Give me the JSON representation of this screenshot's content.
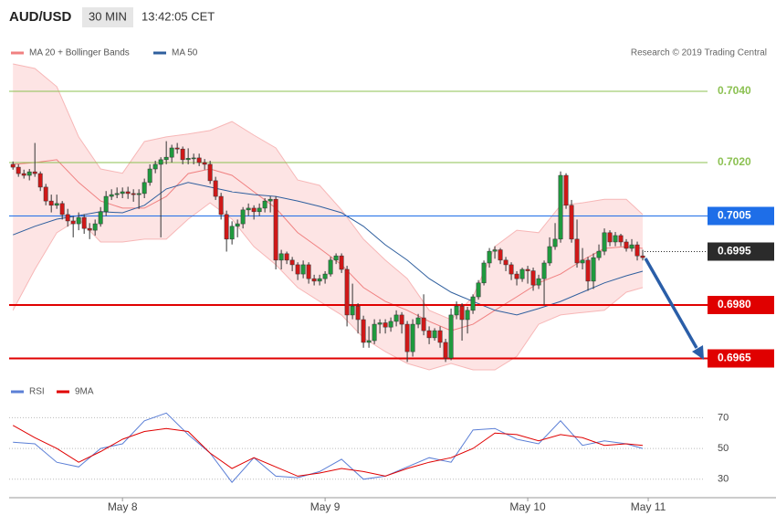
{
  "chart_data": [
    {
      "type": "candlestick",
      "title": "AUD/USD",
      "interval": "30 MIN",
      "time": "13:42:05 CET",
      "credit": "Research © 2019 Trading Central",
      "up_color": "#1f9a3e",
      "down_color": "#d01818",
      "xlim": [
        -0.7,
        126
      ],
      "xticks": [
        {
          "value": 20,
          "label": "May 8"
        },
        {
          "value": 57,
          "label": "May 9"
        },
        {
          "value": 94,
          "label": "May 10"
        },
        {
          "value": 116,
          "label": "May 11"
        }
      ],
      "ylim": [
        0.696,
        0.7054
      ],
      "legend": [
        {
          "name": "MA 20 + Bollinger Bands",
          "color": "#f08080"
        },
        {
          "name": "MA 50",
          "color": "#2f5f9e"
        }
      ],
      "candles": [
        [
          0.70195,
          0.70203,
          0.7018,
          0.70187
        ],
        [
          0.70187,
          0.70195,
          0.7016,
          0.70169
        ],
        [
          0.70169,
          0.7018,
          0.70155,
          0.70164
        ],
        [
          0.70164,
          0.70182,
          0.7015,
          0.70174
        ],
        [
          0.70174,
          0.70255,
          0.7016,
          0.70169
        ],
        [
          0.70169,
          0.70175,
          0.7012,
          0.70131
        ],
        [
          0.70131,
          0.7014,
          0.7008,
          0.70092
        ],
        [
          0.70092,
          0.7011,
          0.7006,
          0.7008
        ],
        [
          0.7008,
          0.7011,
          0.7007,
          0.70085
        ],
        [
          0.70085,
          0.70092,
          0.7004,
          0.70054
        ],
        [
          0.70054,
          0.7007,
          0.7002,
          0.70036
        ],
        [
          0.70036,
          0.7005,
          0.6999,
          0.70028
        ],
        [
          0.70028,
          0.7006,
          0.7001,
          0.70046
        ],
        [
          0.70046,
          0.70055,
          0.7,
          0.70015
        ],
        [
          0.70015,
          0.7003,
          0.69985,
          0.7001
        ],
        [
          0.7001,
          0.7004,
          0.69995,
          0.70028
        ],
        [
          0.70028,
          0.70075,
          0.7002,
          0.70062
        ],
        [
          0.70062,
          0.7012,
          0.7005,
          0.70105
        ],
        [
          0.70105,
          0.70125,
          0.70095,
          0.7011
        ],
        [
          0.7011,
          0.7013,
          0.701,
          0.70113
        ],
        [
          0.70113,
          0.7013,
          0.701,
          0.70118
        ],
        [
          0.70118,
          0.70132,
          0.70098,
          0.70113
        ],
        [
          0.70113,
          0.70125,
          0.7009,
          0.7011
        ],
        [
          0.7011,
          0.70125,
          0.7007,
          0.70113
        ],
        [
          0.70113,
          0.70155,
          0.701,
          0.70144
        ],
        [
          0.70144,
          0.70195,
          0.70135,
          0.70182
        ],
        [
          0.70182,
          0.70205,
          0.7017,
          0.70195
        ],
        [
          0.70195,
          0.70215,
          0.6999,
          0.70208
        ],
        [
          0.70208,
          0.7026,
          0.70195,
          0.70215
        ],
        [
          0.70215,
          0.7025,
          0.702,
          0.70241
        ],
        [
          0.70241,
          0.70255,
          0.70225,
          0.70238
        ],
        [
          0.70238,
          0.70245,
          0.70195,
          0.70208
        ],
        [
          0.70208,
          0.7024,
          0.70195,
          0.70212
        ],
        [
          0.70212,
          0.70225,
          0.70195,
          0.70213
        ],
        [
          0.70213,
          0.70225,
          0.7019,
          0.702
        ],
        [
          0.702,
          0.7021,
          0.7018,
          0.70195
        ],
        [
          0.70195,
          0.70205,
          0.7014,
          0.70149
        ],
        [
          0.70149,
          0.7016,
          0.70095,
          0.70105
        ],
        [
          0.70105,
          0.70115,
          0.7004,
          0.70054
        ],
        [
          0.70054,
          0.70065,
          0.6995,
          0.69985
        ],
        [
          0.69985,
          0.70035,
          0.6997,
          0.70021
        ],
        [
          0.70021,
          0.7004,
          0.6999,
          0.70028
        ],
        [
          0.70028,
          0.70075,
          0.70015,
          0.70067
        ],
        [
          0.70067,
          0.70085,
          0.7005,
          0.70072
        ],
        [
          0.70072,
          0.7008,
          0.7004,
          0.70062
        ],
        [
          0.70062,
          0.70085,
          0.7005,
          0.70072
        ],
        [
          0.70072,
          0.701,
          0.7006,
          0.70092
        ],
        [
          0.70092,
          0.70105,
          0.7006,
          0.70097
        ],
        [
          0.70097,
          0.70105,
          0.699,
          0.69926
        ],
        [
          0.69926,
          0.69955,
          0.699,
          0.69944
        ],
        [
          0.69944,
          0.6995,
          0.69915,
          0.69926
        ],
        [
          0.69926,
          0.69935,
          0.69895,
          0.69913
        ],
        [
          0.69913,
          0.6992,
          0.6987,
          0.69887
        ],
        [
          0.69887,
          0.69925,
          0.69875,
          0.69913
        ],
        [
          0.69913,
          0.6992,
          0.6986,
          0.69874
        ],
        [
          0.69874,
          0.69885,
          0.69855,
          0.69867
        ],
        [
          0.69867,
          0.69885,
          0.69855,
          0.69874
        ],
        [
          0.69874,
          0.69895,
          0.6986,
          0.69887
        ],
        [
          0.69887,
          0.69935,
          0.6988,
          0.69926
        ],
        [
          0.69926,
          0.69945,
          0.69915,
          0.69938
        ],
        [
          0.69938,
          0.69945,
          0.6989,
          0.699
        ],
        [
          0.699,
          0.6991,
          0.6974,
          0.69772
        ],
        [
          0.69772,
          0.6986,
          0.6976,
          0.69797
        ],
        [
          0.69797,
          0.69805,
          0.6972,
          0.69759
        ],
        [
          0.69759,
          0.6977,
          0.6968,
          0.69695
        ],
        [
          0.69695,
          0.6974,
          0.6968,
          0.697
        ],
        [
          0.697,
          0.6976,
          0.6969,
          0.69746
        ],
        [
          0.69746,
          0.6976,
          0.6972,
          0.6975
        ],
        [
          0.6975,
          0.6976,
          0.6972,
          0.69738
        ],
        [
          0.69738,
          0.69765,
          0.69725,
          0.69754
        ],
        [
          0.69754,
          0.69785,
          0.6974,
          0.69772
        ],
        [
          0.69772,
          0.6978,
          0.6972,
          0.69746
        ],
        [
          0.69746,
          0.69755,
          0.6964,
          0.69669
        ],
        [
          0.69669,
          0.6976,
          0.69655,
          0.69746
        ],
        [
          0.69746,
          0.69775,
          0.69735,
          0.69764
        ],
        [
          0.69764,
          0.6983,
          0.69715,
          0.69728
        ],
        [
          0.69728,
          0.6974,
          0.6969,
          0.69708
        ],
        [
          0.69708,
          0.69735,
          0.697,
          0.69728
        ],
        [
          0.69728,
          0.6974,
          0.6968,
          0.69695
        ],
        [
          0.69695,
          0.69705,
          0.6964,
          0.69651
        ],
        [
          0.69651,
          0.6979,
          0.69645,
          0.69772
        ],
        [
          0.69772,
          0.6981,
          0.6976,
          0.69797
        ],
        [
          0.69797,
          0.69805,
          0.697,
          0.69759
        ],
        [
          0.69759,
          0.69795,
          0.6972,
          0.69785
        ],
        [
          0.69785,
          0.6983,
          0.69775,
          0.69823
        ],
        [
          0.69823,
          0.6987,
          0.69815,
          0.69862
        ],
        [
          0.69862,
          0.69925,
          0.69855,
          0.69918
        ],
        [
          0.69918,
          0.6996,
          0.69905,
          0.69951
        ],
        [
          0.69951,
          0.69965,
          0.6993,
          0.69955
        ],
        [
          0.69955,
          0.6996,
          0.69915,
          0.69926
        ],
        [
          0.69926,
          0.69935,
          0.69895,
          0.69913
        ],
        [
          0.69913,
          0.6992,
          0.6987,
          0.69887
        ],
        [
          0.69887,
          0.69895,
          0.69855,
          0.69874
        ],
        [
          0.69874,
          0.69905,
          0.69865,
          0.699
        ],
        [
          0.699,
          0.6991,
          0.6986,
          0.69896
        ],
        [
          0.69896,
          0.69905,
          0.6984,
          0.69856
        ],
        [
          0.69856,
          0.69885,
          0.69845,
          0.69874
        ],
        [
          0.69874,
          0.69925,
          0.698,
          0.69918
        ],
        [
          0.69918,
          0.6999,
          0.6991,
          0.69964
        ],
        [
          0.69964,
          0.7003,
          0.69955,
          0.69985
        ],
        [
          0.69985,
          0.70175,
          0.69975,
          0.70164
        ],
        [
          0.70164,
          0.7017,
          0.7007,
          0.7008
        ],
        [
          0.7008,
          0.70095,
          0.69975,
          0.69985
        ],
        [
          0.69985,
          0.7004,
          0.69905,
          0.69918
        ],
        [
          0.69918,
          0.6996,
          0.699,
          0.69926
        ],
        [
          0.69926,
          0.69935,
          0.6984,
          0.69867
        ],
        [
          0.69867,
          0.69945,
          0.69845,
          0.69933
        ],
        [
          0.69933,
          0.6997,
          0.69925,
          0.69951
        ],
        [
          0.69951,
          0.70015,
          0.6994,
          0.70003
        ],
        [
          0.70003,
          0.7001,
          0.69965,
          0.69977
        ],
        [
          0.69977,
          0.70005,
          0.69965,
          0.69995
        ],
        [
          0.69995,
          0.7,
          0.69965,
          0.69977
        ],
        [
          0.69977,
          0.69985,
          0.6995,
          0.69959
        ],
        [
          0.69959,
          0.69985,
          0.6995,
          0.69969
        ],
        [
          0.69969,
          0.69978,
          0.69925,
          0.69938
        ],
        [
          0.69938,
          0.69955,
          0.69925,
          0.69933
        ]
      ],
      "line_x": [
        0,
        4,
        8,
        12,
        16,
        20,
        24,
        28,
        32,
        36,
        40,
        44,
        48,
        52,
        56,
        60,
        64,
        68,
        72,
        76,
        80,
        84,
        88,
        92,
        96,
        100,
        104,
        108,
        112,
        115
      ],
      "ma20": [
        0.70195,
        0.702,
        0.70208,
        0.70144,
        0.70092,
        0.70072,
        0.70072,
        0.70105,
        0.70169,
        0.70182,
        0.70164,
        0.70118,
        0.70072,
        0.70003,
        0.69959,
        0.69913,
        0.69849,
        0.6981,
        0.69785,
        0.69754,
        0.69728,
        0.69746,
        0.69785,
        0.69823,
        0.69862,
        0.69887,
        0.69926,
        0.69959,
        0.69964,
        0.69959
      ],
      "bb_upper": [
        0.70477,
        0.70464,
        0.70413,
        0.70272,
        0.70182,
        0.7017,
        0.70259,
        0.70272,
        0.7028,
        0.7029,
        0.70315,
        0.70277,
        0.70241,
        0.70151,
        0.70136,
        0.70067,
        0.69985,
        0.69926,
        0.69874,
        0.69785,
        0.69759,
        0.69823,
        0.69964,
        0.7001,
        0.70003,
        0.7008,
        0.70087,
        0.70097,
        0.70097,
        0.70054
      ],
      "bb_lower": [
        0.69785,
        0.699,
        0.70003,
        0.70041,
        0.69977,
        0.69977,
        0.69985,
        0.69985,
        0.70041,
        0.70087,
        0.70041,
        0.69964,
        0.69913,
        0.69849,
        0.6981,
        0.69772,
        0.69708,
        0.69669,
        0.69636,
        0.69618,
        0.69636,
        0.69618,
        0.69618,
        0.69656,
        0.69746,
        0.69772,
        0.69779,
        0.69785,
        0.69836,
        0.69849
      ],
      "ma50": [
        0.69997,
        0.70021,
        0.70041,
        0.70051,
        0.70062,
        0.70059,
        0.7008,
        0.70126,
        0.70144,
        0.70131,
        0.70118,
        0.7011,
        0.70105,
        0.70092,
        0.70077,
        0.70059,
        0.70021,
        0.69969,
        0.69926,
        0.69874,
        0.69836,
        0.6981,
        0.69785,
        0.69772,
        0.6979,
        0.6981,
        0.69836,
        0.69862,
        0.69882,
        0.69895
      ],
      "levels": [
        {
          "value": 0.704,
          "label": "0.7040",
          "color": "#8cc152",
          "style": "plain"
        },
        {
          "value": 0.702,
          "label": "0.7020",
          "color": "#8cc152",
          "style": "plain"
        },
        {
          "value": 0.7005,
          "color": "#1e6ee8",
          "style": "box"
        },
        {
          "value": 0.6995,
          "color": "#2b2b2b",
          "style": "dotted-box"
        },
        {
          "value": 0.698,
          "label": "0.6980",
          "color": "#e00000",
          "style": "thick-box"
        },
        {
          "value": 0.6965,
          "color": "#e00000",
          "style": "thick-box"
        }
      ]
    },
    {
      "type": "line",
      "ylim": [
        18,
        91
      ],
      "yticks": [
        30,
        50,
        70
      ],
      "grid": true,
      "x": [
        0,
        4,
        8,
        12,
        16,
        20,
        24,
        28,
        32,
        36,
        40,
        44,
        48,
        52,
        56,
        60,
        64,
        68,
        72,
        76,
        80,
        84,
        88,
        92,
        96,
        100,
        104,
        108,
        112,
        115
      ],
      "series": [
        {
          "name": "RSI",
          "color": "#5b7fd6",
          "values": [
            54,
            53,
            41,
            38,
            50,
            53,
            68,
            73,
            59,
            47,
            28,
            44,
            32,
            31,
            35,
            43,
            30,
            32,
            38,
            44,
            41,
            62,
            63,
            56,
            53,
            68,
            52,
            55,
            53,
            50
          ]
        },
        {
          "name": "9MA",
          "color": "#e00000",
          "values": [
            65,
            57,
            50,
            41,
            48,
            56,
            61,
            63,
            61,
            47,
            37,
            44,
            38,
            32,
            34,
            37,
            35,
            32,
            37,
            41,
            44,
            50,
            60,
            59,
            55,
            59,
            57,
            52,
            53,
            52
          ]
        }
      ]
    }
  ]
}
